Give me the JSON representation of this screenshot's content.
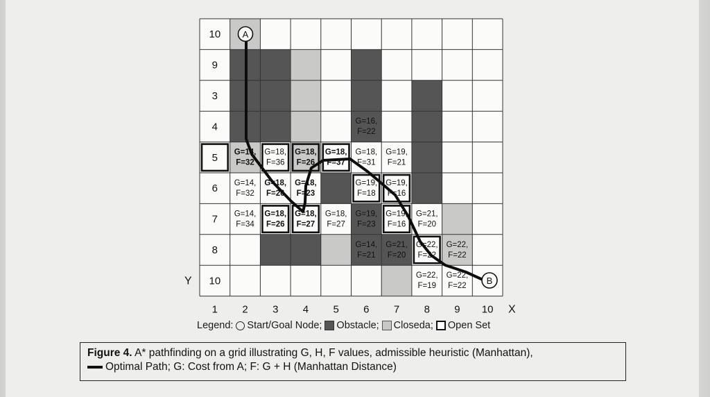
{
  "grid": {
    "row_labels": [
      "10",
      "9",
      "3",
      "4",
      "5",
      "6",
      "7",
      "8",
      "10"
    ],
    "col_labels": [
      "1",
      "2",
      "3",
      "4",
      "5",
      "6",
      "7",
      "8",
      "9",
      "10"
    ],
    "y_axis_label": "Y",
    "x_axis_label": "X",
    "start_label": "A",
    "goal_label": "B",
    "obstacles": [
      [
        1,
        1
      ],
      [
        2,
        1
      ],
      [
        3,
        1
      ],
      [
        1,
        2
      ],
      [
        2,
        2
      ],
      [
        3,
        2
      ],
      [
        1,
        5
      ],
      [
        2,
        5
      ],
      [
        3,
        5
      ],
      [
        2,
        7
      ],
      [
        3,
        7
      ],
      [
        4,
        7
      ],
      [
        5,
        7
      ],
      [
        7,
        2
      ],
      [
        7,
        3
      ],
      [
        5,
        4
      ],
      [
        6,
        5
      ],
      [
        7,
        5
      ],
      [
        7,
        6
      ]
    ],
    "closed": [
      [
        0,
        1
      ],
      [
        4,
        1
      ],
      [
        1,
        2
      ],
      [
        1,
        3
      ],
      [
        2,
        3
      ],
      [
        3,
        3
      ],
      [
        4,
        3
      ],
      [
        7,
        4
      ],
      [
        6,
        5
      ],
      [
        7,
        6
      ],
      [
        8,
        6
      ],
      [
        6,
        8
      ],
      [
        7,
        8
      ]
    ],
    "open": [
      [
        4,
        0
      ],
      [
        4,
        2
      ],
      [
        4,
        3
      ],
      [
        4,
        4
      ],
      [
        5,
        5
      ],
      [
        5,
        6
      ],
      [
        6,
        2
      ],
      [
        6,
        3
      ],
      [
        6,
        6
      ],
      [
        7,
        7
      ]
    ],
    "cells": [
      {
        "r": 3,
        "c": 5,
        "g": "G=16,",
        "f": "F=22"
      },
      {
        "r": 4,
        "c": 1,
        "g": "G=14,",
        "f": "F=32"
      },
      {
        "r": 4,
        "c": 2,
        "g": "G=18,",
        "f": "F=36"
      },
      {
        "r": 4,
        "c": 3,
        "g": "G=18,",
        "f": "F=26"
      },
      {
        "r": 4,
        "c": 4,
        "g": "G=18,",
        "f": "F=37"
      },
      {
        "r": 4,
        "c": 5,
        "g": "G=18,",
        "f": "F=31"
      },
      {
        "r": 4,
        "c": 6,
        "g": "G=19,",
        "f": "F=21"
      },
      {
        "r": 5,
        "c": 1,
        "g": "G=14,",
        "f": "F=32"
      },
      {
        "r": 5,
        "c": 2,
        "g": "G=18,",
        "f": "F=26"
      },
      {
        "r": 5,
        "c": 3,
        "g": "G=18,",
        "f": "F=23"
      },
      {
        "r": 5,
        "c": 5,
        "g": "G=19,",
        "f": "F=18"
      },
      {
        "r": 5,
        "c": 6,
        "g": "G=19,",
        "f": "F=16"
      },
      {
        "r": 6,
        "c": 1,
        "g": "G=14,",
        "f": "F=34"
      },
      {
        "r": 6,
        "c": 2,
        "g": "G=18,",
        "f": "F=26"
      },
      {
        "r": 6,
        "c": 3,
        "g": "G=18,",
        "f": "F=27"
      },
      {
        "r": 6,
        "c": 4,
        "g": "G=18,",
        "f": "F=27"
      },
      {
        "r": 6,
        "c": 5,
        "g": "G=19,",
        "f": "F=23"
      },
      {
        "r": 6,
        "c": 6,
        "g": "G=19,",
        "f": "F=16"
      },
      {
        "r": 6,
        "c": 7,
        "g": "G=21,",
        "f": "F=20"
      },
      {
        "r": 7,
        "c": 5,
        "g": "G=14,",
        "f": "F=21"
      },
      {
        "r": 7,
        "c": 6,
        "g": "G=21,",
        "f": "F=20"
      },
      {
        "r": 7,
        "c": 7,
        "g": "G=22,",
        "f": "F=22"
      },
      {
        "r": 7,
        "c": 8,
        "g": "G=22,",
        "f": "F=22"
      },
      {
        "r": 8,
        "c": 7,
        "g": "G=22,",
        "f": "F=19"
      },
      {
        "r": 8,
        "c": 8,
        "g": "G=22,",
        "f": "F=22"
      }
    ],
    "bold_cells": [
      [
        4,
        1
      ],
      [
        4,
        3
      ],
      [
        4,
        4
      ],
      [
        5,
        2
      ],
      [
        5,
        3
      ],
      [
        6,
        2
      ],
      [
        6,
        3
      ]
    ]
  },
  "legend": {
    "prefix": "Legend:",
    "start_goal": "Start/Goal Node;",
    "obstacle": "Obstacle;",
    "closed": "Closeda;",
    "open": "Open Set"
  },
  "caption": {
    "label": "Figure 4.",
    "text1": "A* pathfinding on a grid illustrating G, H, F values, admissible heuristic (Manhattan),",
    "text2": "Optimal Path; G: Cost from A; F: G + H (Manhattan Distance)"
  },
  "colors": {
    "obstacle": "#555555",
    "closed": "#c9c9c7",
    "open_border": "#111111",
    "grid_line": "#333333"
  }
}
